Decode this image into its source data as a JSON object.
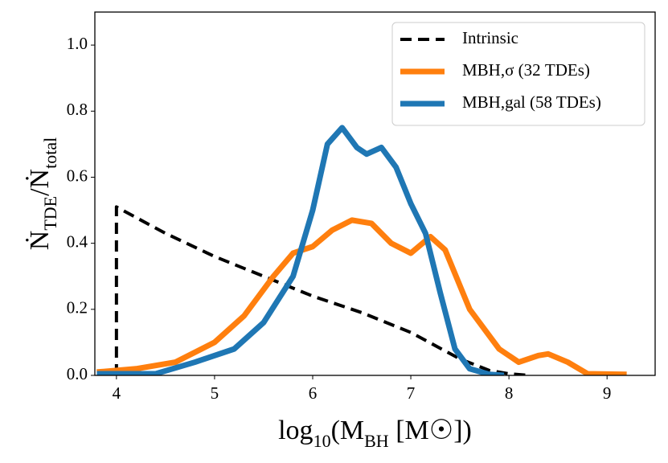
{
  "chart_data": {
    "type": "line",
    "xlabel": [
      "log",
      "10",
      "(M",
      "BH",
      " [M☉])"
    ],
    "ylabel": [
      "Ṅ",
      "TDE",
      "/Ṅ",
      "total"
    ],
    "xlim": [
      3.78,
      9.49
    ],
    "ylim": [
      0,
      1.1
    ],
    "xticks": [
      4,
      5,
      6,
      7,
      8,
      9
    ],
    "yticks": [
      {
        "value": 0,
        "label": "0.0"
      },
      {
        "value": 0.2,
        "label": "0.2"
      },
      {
        "value": 0.4,
        "label": "0.4"
      },
      {
        "value": 0.6,
        "label": "0.6"
      },
      {
        "value": 0.8,
        "label": "0.8"
      },
      {
        "value": 1.0,
        "label": "1.0"
      }
    ],
    "legend": "upper right",
    "series": [
      {
        "name": "Intrinsic",
        "color": "#000000",
        "dash": true,
        "x": [
          4,
          4,
          4.5,
          5,
          5.5,
          6,
          6.5,
          7,
          7.5,
          7.8,
          8,
          8.2
        ],
        "values": [
          0,
          0.51,
          0.43,
          0.36,
          0.3,
          0.24,
          0.19,
          0.13,
          0.05,
          0.015,
          0.005,
          0
        ]
      },
      {
        "name": "MBH,σ (32 TDEs)",
        "color": "#ff7f0e",
        "dash": false,
        "x": [
          3.8,
          4.2,
          4.6,
          5.0,
          5.3,
          5.6,
          5.8,
          6.0,
          6.2,
          6.4,
          6.6,
          6.8,
          7.0,
          7.2,
          7.35,
          7.6,
          7.9,
          8.1,
          8.3,
          8.4,
          8.6,
          8.8,
          9.2
        ],
        "values": [
          0.01,
          0.02,
          0.04,
          0.1,
          0.18,
          0.3,
          0.37,
          0.39,
          0.44,
          0.47,
          0.46,
          0.4,
          0.37,
          0.42,
          0.38,
          0.2,
          0.08,
          0.04,
          0.06,
          0.065,
          0.04,
          0.005,
          0.003
        ]
      },
      {
        "name": "MBH,gal (58 TDEs)",
        "color": "#1f77b4",
        "dash": false,
        "x": [
          3.8,
          4.4,
          4.8,
          5.2,
          5.5,
          5.8,
          6.0,
          6.15,
          6.3,
          6.45,
          6.55,
          6.7,
          6.85,
          7.0,
          7.15,
          7.3,
          7.45,
          7.6,
          7.8,
          7.95
        ],
        "values": [
          0.005,
          0.005,
          0.04,
          0.08,
          0.16,
          0.3,
          0.5,
          0.7,
          0.75,
          0.69,
          0.67,
          0.69,
          0.63,
          0.52,
          0.43,
          0.25,
          0.08,
          0.02,
          0.003,
          0
        ]
      }
    ]
  }
}
